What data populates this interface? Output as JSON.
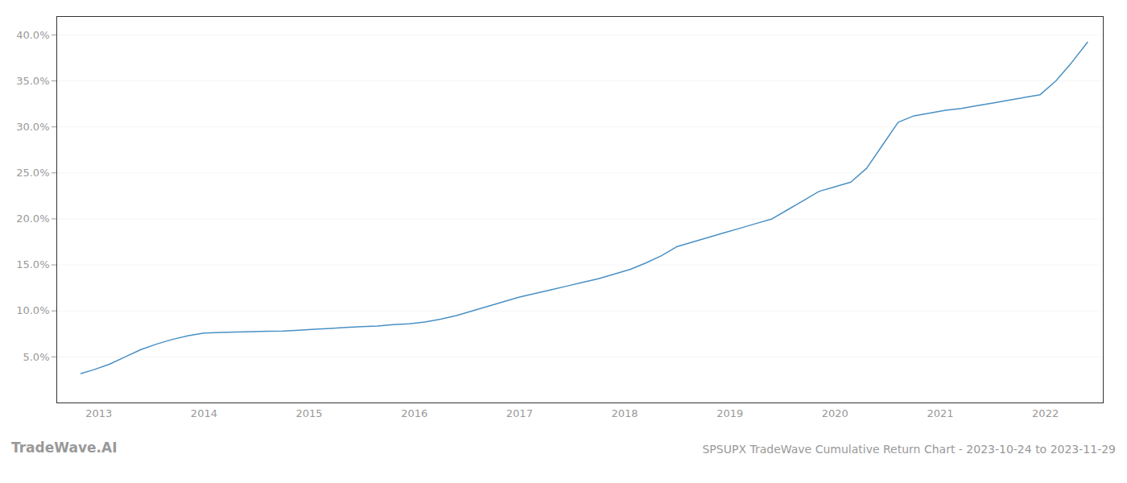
{
  "chart_data": {
    "type": "line",
    "title": "SPSUPX TradeWave Cumulative Return Chart - 2023-10-24 to 2023-11-29",
    "annotations": [
      "TradeWave.AI"
    ],
    "color": "#4a90c4",
    "grid": "y",
    "x": [
      2012.83,
      2012.95,
      2013.1,
      2013.25,
      2013.4,
      2013.55,
      2013.7,
      2013.85,
      2014.0,
      2014.15,
      2014.3,
      2014.45,
      2014.6,
      2014.75,
      2014.9,
      2015.05,
      2015.2,
      2015.35,
      2015.5,
      2015.65,
      2015.8,
      2015.95,
      2016.1,
      2016.25,
      2016.4,
      2016.55,
      2016.7,
      2016.85,
      2017.0,
      2017.15,
      2017.3,
      2017.45,
      2017.6,
      2017.75,
      2017.9,
      2018.05,
      2018.2,
      2018.35,
      2018.5,
      2018.65,
      2018.8,
      2018.95,
      2019.1,
      2019.25,
      2019.4,
      2019.55,
      2019.7,
      2019.85,
      2020.0,
      2020.15,
      2020.3,
      2020.45,
      2020.6,
      2020.75,
      2020.9,
      2021.05,
      2021.2,
      2021.35,
      2021.5,
      2021.65,
      2021.8,
      2021.95,
      2022.1,
      2022.25,
      2022.4
    ],
    "values": [
      3.2,
      3.6,
      4.2,
      5.0,
      5.8,
      6.4,
      6.9,
      7.3,
      7.6,
      7.65,
      7.7,
      7.75,
      7.78,
      7.82,
      7.9,
      8.0,
      8.1,
      8.2,
      8.3,
      8.35,
      8.5,
      8.6,
      8.8,
      9.1,
      9.5,
      10.0,
      10.5,
      11.0,
      11.5,
      11.9,
      12.3,
      12.7,
      13.1,
      13.5,
      14.0,
      14.5,
      15.2,
      16.0,
      17.0,
      17.5,
      18.0,
      18.5,
      19.0,
      19.5,
      20.0,
      21.0,
      22.0,
      23.0,
      23.5,
      24.0,
      25.5,
      28.0,
      30.5,
      31.2,
      31.5,
      31.8,
      32.0,
      32.3,
      32.6,
      32.9,
      33.2,
      33.5,
      35.0,
      37.0,
      39.2
    ],
    "xlim": [
      2012.6,
      2022.55
    ],
    "xticks": [
      2013,
      2014,
      2015,
      2016,
      2017,
      2018,
      2019,
      2020,
      2021,
      2022
    ],
    "ylim": [
      0,
      42
    ],
    "yticks": [
      {
        "value": 5.0,
        "label": "5.0%"
      },
      {
        "value": 10.0,
        "label": "10.0%"
      },
      {
        "value": 15.0,
        "label": "15.0%"
      },
      {
        "value": 20.0,
        "label": "20.0%"
      },
      {
        "value": 25.0,
        "label": "25.0%"
      },
      {
        "value": 30.0,
        "label": "30.0%"
      },
      {
        "value": 35.0,
        "label": "35.0%"
      },
      {
        "value": 40.0,
        "label": "40.0%"
      }
    ]
  }
}
